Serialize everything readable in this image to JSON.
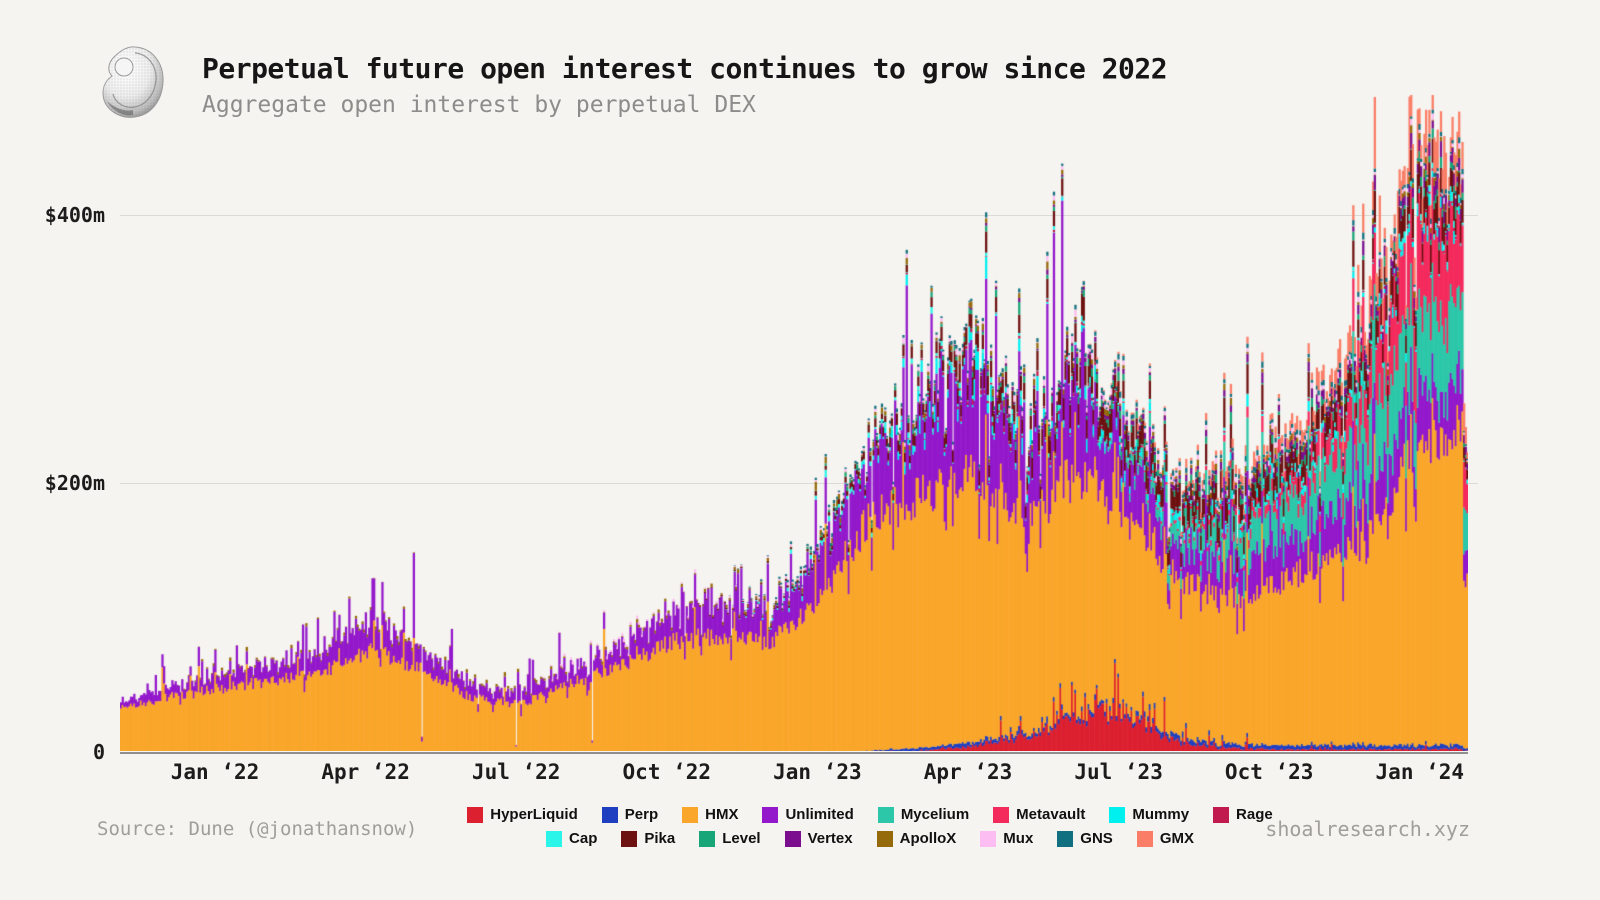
{
  "header": {
    "title": "Perpetual future open interest continues to grow since 2022",
    "subtitle": "Aggregate open interest by perpetual DEX",
    "logo": "shell-logo"
  },
  "footer": {
    "source": "Source: Dune (@jonathansnow)",
    "watermark": "shoalresearch.xyz"
  },
  "colors": {
    "background": "#f6f4f0",
    "grid": "#dcdad6",
    "axis": "#8f8f8f",
    "title_text": "#161616",
    "muted_text": "#8c8c8c"
  },
  "chart_data": {
    "type": "bar",
    "stacked": true,
    "title": "Perpetual future open interest continues to grow since 2022",
    "subtitle": "Aggregate open interest by perpetual DEX",
    "unit": "$m",
    "ylim": [
      0,
      495
    ],
    "grid": "horizontal",
    "legend_position": "bottom",
    "y_ticks": [
      {
        "label": "$400m",
        "value": 400
      },
      {
        "label": "$200m",
        "value": 200
      },
      {
        "label": "0",
        "value": 0
      }
    ],
    "x_ticks": [
      "Jan ‘22",
      "Apr ‘22",
      "Jul ‘22",
      "Oct ‘22",
      "Jan ‘23",
      "Apr ‘23",
      "Jul ‘23",
      "Oct ‘23",
      "Jan ‘24"
    ],
    "months": [
      "2021-11",
      "2021-12",
      "2022-01",
      "2022-02",
      "2022-03",
      "2022-04",
      "2022-05",
      "2022-06",
      "2022-07",
      "2022-08",
      "2022-09",
      "2022-10",
      "2022-11",
      "2022-12",
      "2023-01",
      "2023-02",
      "2023-03",
      "2023-04",
      "2023-05",
      "2023-06",
      "2023-07",
      "2023-08",
      "2023-09",
      "2023-10",
      "2023-11",
      "2023-12",
      "2024-01",
      "2024-02"
    ],
    "series_note": "anchors are estimated monthly open interest in $m, stacked bottom-to-top in listed order",
    "series": [
      {
        "name": "HyperLiquid",
        "color": "#dc2030",
        "vol": 0.35,
        "spike": 0.08,
        "anchors": [
          0,
          0,
          0,
          0,
          0,
          0,
          0,
          0,
          0,
          0,
          0,
          0,
          0,
          0,
          0,
          0,
          1,
          4,
          10,
          24,
          30,
          10,
          3,
          2,
          2,
          2,
          2,
          2
        ]
      },
      {
        "name": "Perp",
        "color": "#1e3fc0",
        "vol": 0.35,
        "anchors": [
          0,
          0,
          0,
          0,
          0,
          0,
          0,
          0,
          0,
          0,
          0,
          0,
          0,
          0,
          0,
          1,
          2,
          3,
          3,
          3,
          3,
          4,
          3,
          3,
          3,
          3,
          3,
          3
        ]
      },
      {
        "name": "HMX",
        "color": "#f9a62a",
        "vol": 0.09,
        "anchors": [
          32,
          41,
          47,
          53,
          58,
          76,
          62,
          41,
          35,
          51,
          63,
          82,
          86,
          80,
          112,
          172,
          188,
          200,
          162,
          175,
          152,
          122,
          108,
          115,
          135,
          150,
          225,
          240
        ]
      },
      {
        "name": "Unlimited",
        "color": "#9318cb",
        "vol": 0.4,
        "spike": 0.07,
        "anchors": [
          5,
          8,
          10,
          12,
          15,
          22,
          16,
          10,
          9,
          12,
          15,
          20,
          23,
          19,
          32,
          48,
          50,
          70,
          48,
          52,
          38,
          28,
          26,
          26,
          30,
          36,
          42,
          38
        ]
      },
      {
        "name": "Mycelium",
        "color": "#2cc7a9",
        "vol": 0.22,
        "anchors": [
          0,
          0,
          0,
          0,
          0,
          0,
          0,
          0,
          0,
          0,
          0,
          0,
          0,
          0,
          0,
          0,
          0,
          0,
          0,
          0,
          3,
          12,
          20,
          28,
          35,
          50,
          60,
          55
        ]
      },
      {
        "name": "Metavault",
        "color": "#f42a5d",
        "vol": 0.3,
        "anchors": [
          0,
          0,
          0,
          0,
          0,
          0,
          0,
          0,
          0,
          0,
          0,
          0,
          0,
          0,
          0,
          0,
          0,
          0,
          0,
          0,
          0,
          2,
          4,
          7,
          14,
          32,
          62,
          52
        ]
      },
      {
        "name": "Mummy",
        "color": "#00f0f0",
        "vol": 0.7,
        "burst": true,
        "anchors": [
          0,
          0,
          0,
          0,
          0,
          0,
          0,
          0,
          0,
          0,
          0,
          0,
          0,
          0,
          0,
          1,
          4,
          7,
          5,
          4,
          3,
          3,
          3,
          3,
          3,
          3,
          4,
          4
        ]
      },
      {
        "name": "Rage",
        "color": "#c01a4e",
        "vol": 0.6,
        "burst": true,
        "anchors": [
          0,
          0,
          0,
          0,
          0,
          0,
          0,
          0,
          0,
          0,
          0,
          0,
          0,
          0,
          0,
          0,
          1,
          2,
          2,
          1,
          1,
          1,
          1,
          1,
          1,
          1,
          1,
          1
        ]
      },
      {
        "name": "Cap",
        "color": "#2bf5e8",
        "vol": 0.6,
        "burst": true,
        "anchors": [
          0,
          0,
          0,
          0,
          0,
          0,
          0,
          0,
          0,
          0,
          0,
          0,
          0,
          1,
          2,
          2,
          2,
          2,
          2,
          2,
          2,
          2,
          2,
          2,
          2,
          2,
          3,
          3
        ]
      },
      {
        "name": "Pika",
        "color": "#6d1010",
        "vol": 0.28,
        "anchors": [
          0,
          0,
          0,
          0,
          0,
          0,
          0,
          0,
          0,
          0,
          0,
          0,
          1,
          1,
          2,
          5,
          8,
          12,
          12,
          14,
          14,
          15,
          16,
          15,
          15,
          16,
          18,
          16
        ]
      },
      {
        "name": "Level",
        "color": "#18a577",
        "vol": 0.55,
        "burst": true,
        "anchors": [
          0,
          0,
          0,
          0,
          0,
          0,
          0,
          0,
          0,
          0,
          0,
          0,
          0,
          0,
          1,
          2,
          2,
          2,
          3,
          3,
          3,
          3,
          3,
          3,
          3,
          3,
          4,
          4
        ]
      },
      {
        "name": "Vertex",
        "color": "#7a0e8e",
        "vol": 0.5,
        "anchors": [
          0,
          0,
          0,
          0,
          0,
          0,
          0,
          0,
          0,
          0,
          0,
          0,
          0,
          0,
          0,
          0,
          0,
          1,
          2,
          2,
          3,
          3,
          4,
          4,
          5,
          6,
          8,
          8
        ]
      },
      {
        "name": "ApolloX",
        "color": "#946a0a",
        "vol": 0.7,
        "burst": true,
        "anchors": [
          0,
          0,
          1,
          1,
          1,
          1,
          1,
          1,
          1,
          1,
          1,
          1,
          1,
          1,
          2,
          2,
          2,
          2,
          2,
          2,
          2,
          2,
          2,
          2,
          2,
          2,
          3,
          3
        ]
      },
      {
        "name": "Mux",
        "color": "#fcbef2",
        "vol": 0.6,
        "burst": true,
        "anchors": [
          0,
          0,
          0,
          0,
          0,
          0,
          0,
          0,
          0,
          1,
          1,
          1,
          1,
          1,
          1,
          1,
          2,
          2,
          2,
          2,
          2,
          2,
          2,
          2,
          2,
          2,
          2,
          2
        ]
      },
      {
        "name": "GNS",
        "color": "#11707f",
        "vol": 0.5,
        "anchors": [
          0,
          0,
          0,
          0,
          0,
          0,
          0,
          0,
          0,
          0,
          0,
          0,
          0,
          1,
          2,
          2,
          2,
          2,
          2,
          2,
          3,
          3,
          3,
          3,
          3,
          3,
          3,
          3
        ]
      },
      {
        "name": "GMX",
        "color": "#fa7e67",
        "vol": 0.55,
        "spike": 0.08,
        "anchors": [
          0,
          0,
          0,
          0,
          0,
          0,
          0,
          0,
          0,
          0,
          0,
          0,
          0,
          0,
          0,
          0,
          0,
          0,
          0,
          0,
          1,
          2,
          5,
          6,
          10,
          14,
          20,
          18
        ]
      }
    ]
  }
}
